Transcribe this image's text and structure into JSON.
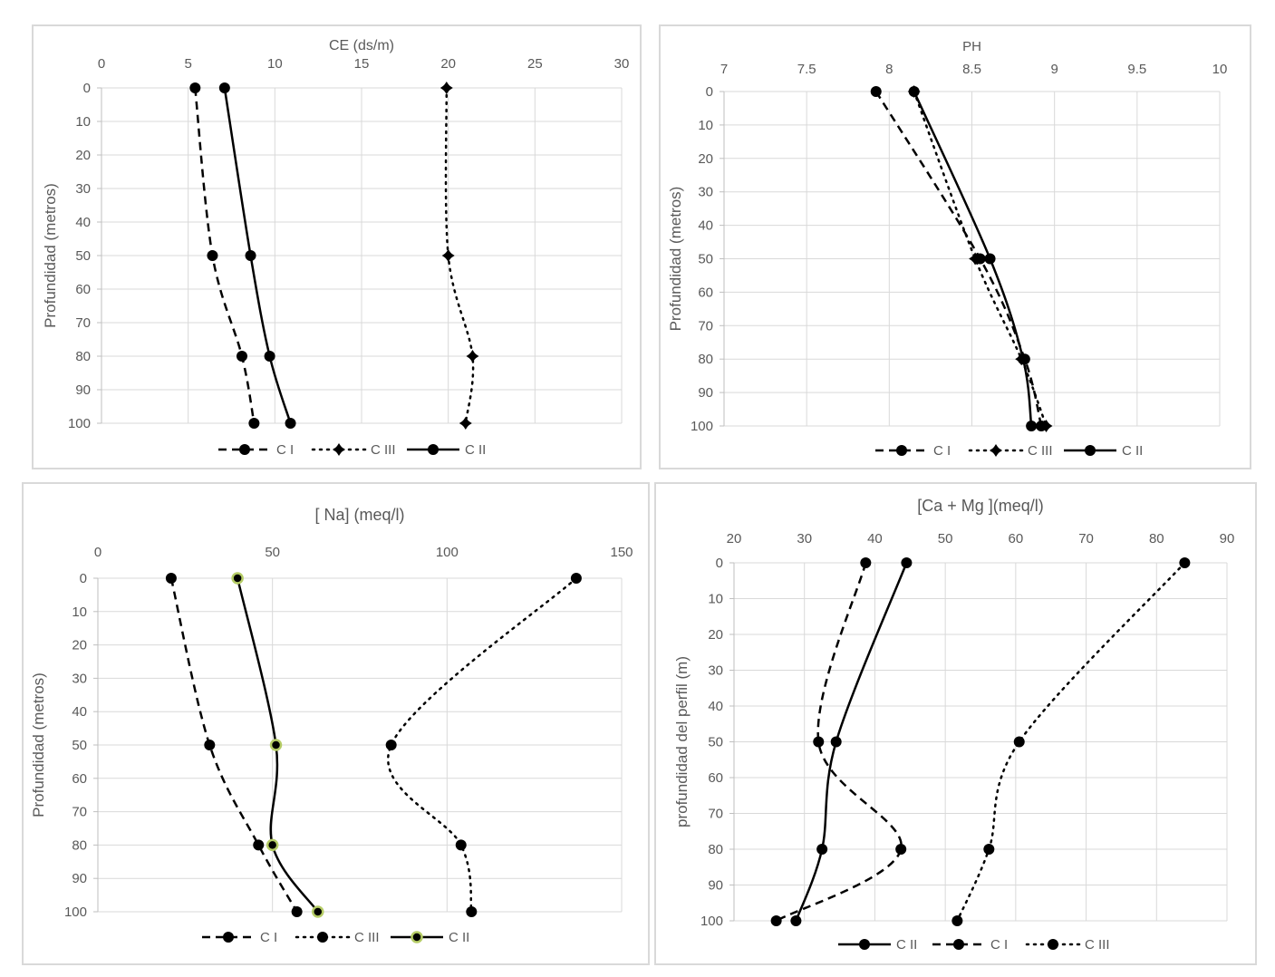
{
  "chart_data": [
    {
      "type": "line",
      "title": "CE (ds/m)",
      "xlabel": "CE (ds/m)",
      "ylabel": "Profundidad (metros)",
      "xlim": [
        0,
        30
      ],
      "ylim": [
        0,
        100
      ],
      "x_ticks": [
        "0",
        "5",
        "10",
        "15",
        "20",
        "25",
        "30"
      ],
      "y_ticks": [
        "0",
        "10",
        "20",
        "30",
        "40",
        "50",
        "60",
        "70",
        "80",
        "90",
        "100"
      ],
      "grid": true,
      "legend_position": "bottom",
      "series": [
        {
          "name": "C I",
          "style": "dashed",
          "marker": "circle",
          "depth": [
            0,
            50,
            80,
            100
          ],
          "values": [
            5.4,
            6.4,
            8.1,
            8.8
          ]
        },
        {
          "name": "C III",
          "style": "dotted",
          "marker": "star",
          "depth": [
            0,
            50,
            80,
            100
          ],
          "values": [
            19.9,
            20.0,
            21.4,
            21.0
          ]
        },
        {
          "name": "C II",
          "style": "solid",
          "marker": "circle",
          "depth": [
            0,
            50,
            80,
            100
          ],
          "values": [
            7.1,
            8.6,
            9.7,
            10.9
          ]
        }
      ]
    },
    {
      "type": "line",
      "title": "PH",
      "xlabel": "PH",
      "ylabel": "Profundidad (metros)",
      "xlim": [
        7,
        10
      ],
      "ylim": [
        0,
        100
      ],
      "x_ticks": [
        "7",
        "7.5",
        "8",
        "8.5",
        "9",
        "9.5",
        "10"
      ],
      "y_ticks": [
        "0",
        "10",
        "20",
        "30",
        "40",
        "50",
        "60",
        "70",
        "80",
        "90",
        "100"
      ],
      "grid": true,
      "legend_position": "bottom",
      "series": [
        {
          "name": "C I",
          "style": "dashed",
          "marker": "circle",
          "depth": [
            0,
            50,
            80,
            100
          ],
          "values": [
            7.92,
            8.55,
            8.82,
            8.92
          ]
        },
        {
          "name": "C III",
          "style": "dotted",
          "marker": "star",
          "depth": [
            0,
            50,
            80,
            100
          ],
          "values": [
            8.15,
            8.52,
            8.8,
            8.95
          ]
        },
        {
          "name": "C II",
          "style": "solid",
          "marker": "circle",
          "depth": [
            0,
            50,
            80,
            100
          ],
          "values": [
            8.15,
            8.61,
            8.81,
            8.86
          ]
        }
      ]
    },
    {
      "type": "line",
      "title": "[ Na] (meq/l)",
      "xlabel": "[ Na] (meq/l)",
      "ylabel": "Profundidad (metros)",
      "xlim": [
        0,
        150
      ],
      "ylim": [
        0,
        100
      ],
      "x_ticks": [
        "0",
        "50",
        "100",
        "150"
      ],
      "y_ticks": [
        "0",
        "10",
        "20",
        "30",
        "40",
        "50",
        "60",
        "70",
        "80",
        "90",
        "100"
      ],
      "grid": true,
      "legend_position": "bottom",
      "series": [
        {
          "name": "C I",
          "style": "dashed",
          "marker": "circle",
          "depth": [
            0,
            50,
            80,
            100
          ],
          "values": [
            21,
            32,
            46,
            57
          ]
        },
        {
          "name": "C III",
          "style": "dotted",
          "marker": "circle",
          "depth": [
            0,
            50,
            80,
            100
          ],
          "values": [
            137,
            84,
            104,
            107
          ]
        },
        {
          "name": "C II",
          "style": "solid",
          "marker": "circle-green",
          "depth": [
            0,
            50,
            80,
            100
          ],
          "values": [
            40,
            51,
            50,
            63
          ]
        }
      ]
    },
    {
      "type": "line",
      "title": "[Ca + Mg ](meq/l)",
      "xlabel": "[Ca + Mg ](meq/l)",
      "ylabel": "profundidad del perfil  (m)",
      "xlim": [
        20,
        90
      ],
      "ylim": [
        0,
        100
      ],
      "x_ticks": [
        "20",
        "30",
        "40",
        "50",
        "60",
        "70",
        "80",
        "90"
      ],
      "y_ticks": [
        "0",
        "10",
        "20",
        "30",
        "40",
        "50",
        "60",
        "70",
        "80",
        "90",
        "100"
      ],
      "grid": true,
      "legend_position": "bottom",
      "series": [
        {
          "name": "C II",
          "style": "solid",
          "marker": "circle",
          "depth": [
            0,
            50,
            80,
            100
          ],
          "values": [
            44.5,
            34.5,
            32.5,
            28.8
          ]
        },
        {
          "name": "C I",
          "style": "dashed",
          "marker": "circle",
          "depth": [
            0,
            50,
            80,
            100
          ],
          "values": [
            38.7,
            32,
            43.7,
            26
          ]
        },
        {
          "name": "C III",
          "style": "dotted",
          "marker": "circle",
          "depth": [
            0,
            50,
            80,
            100
          ],
          "values": [
            84,
            60.5,
            56.2,
            51.7
          ]
        }
      ]
    }
  ]
}
